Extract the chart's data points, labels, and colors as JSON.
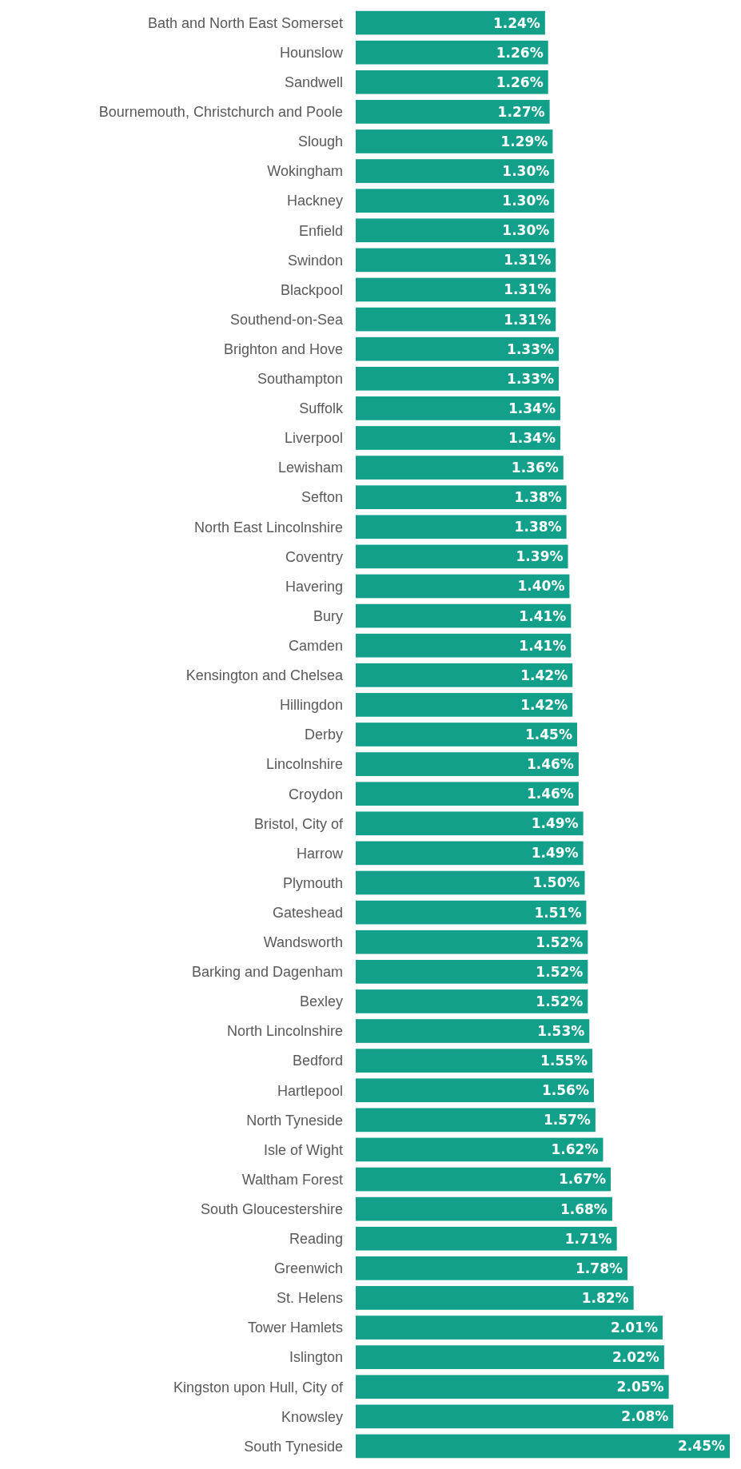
{
  "chart_data": {
    "type": "bar",
    "orientation": "horizontal",
    "color": "#13a08a",
    "categories": [
      "Bath and North East Somerset",
      "Hounslow",
      "Sandwell",
      "Bournemouth, Christchurch and Poole",
      "Slough",
      "Wokingham",
      "Hackney",
      "Enfield",
      "Swindon",
      "Blackpool",
      "Southend-on-Sea",
      "Brighton and Hove",
      "Southampton",
      "Suffolk",
      "Liverpool",
      "Lewisham",
      "Sefton",
      "North East Lincolnshire",
      "Coventry",
      "Havering",
      "Bury",
      "Camden",
      "Kensington and Chelsea",
      "Hillingdon",
      "Derby",
      "Lincolnshire",
      "Croydon",
      "Bristol, City of",
      "Harrow",
      "Plymouth",
      "Gateshead",
      "Wandsworth",
      "Barking and Dagenham",
      "Bexley",
      "North Lincolnshire",
      "Bedford",
      "Hartlepool",
      "North Tyneside",
      "Isle of Wight",
      "Waltham Forest",
      "South Gloucestershire",
      "Reading",
      "Greenwich",
      "St. Helens",
      "Tower Hamlets",
      "Islington",
      "Kingston upon Hull, City of",
      "Knowsley",
      "South Tyneside"
    ],
    "values": [
      1.24,
      1.26,
      1.26,
      1.27,
      1.29,
      1.3,
      1.3,
      1.3,
      1.31,
      1.31,
      1.31,
      1.33,
      1.33,
      1.34,
      1.34,
      1.36,
      1.38,
      1.38,
      1.39,
      1.4,
      1.41,
      1.41,
      1.42,
      1.42,
      1.45,
      1.46,
      1.46,
      1.49,
      1.49,
      1.5,
      1.51,
      1.52,
      1.52,
      1.52,
      1.53,
      1.55,
      1.56,
      1.57,
      1.62,
      1.67,
      1.68,
      1.71,
      1.78,
      1.82,
      2.01,
      2.02,
      2.05,
      2.08,
      2.45
    ],
    "value_labels": [
      "1.24%",
      "1.26%",
      "1.26%",
      "1.27%",
      "1.29%",
      "1.30%",
      "1.30%",
      "1.30%",
      "1.31%",
      "1.31%",
      "1.31%",
      "1.33%",
      "1.33%",
      "1.34%",
      "1.34%",
      "1.36%",
      "1.38%",
      "1.38%",
      "1.39%",
      "1.40%",
      "1.41%",
      "1.41%",
      "1.42%",
      "1.42%",
      "1.45%",
      "1.46%",
      "1.46%",
      "1.49%",
      "1.49%",
      "1.50%",
      "1.51%",
      "1.52%",
      "1.52%",
      "1.52%",
      "1.53%",
      "1.55%",
      "1.56%",
      "1.57%",
      "1.62%",
      "1.67%",
      "1.68%",
      "1.71%",
      "1.78%",
      "1.82%",
      "2.01%",
      "2.02%",
      "2.05%",
      "2.08%",
      "2.45%"
    ]
  }
}
